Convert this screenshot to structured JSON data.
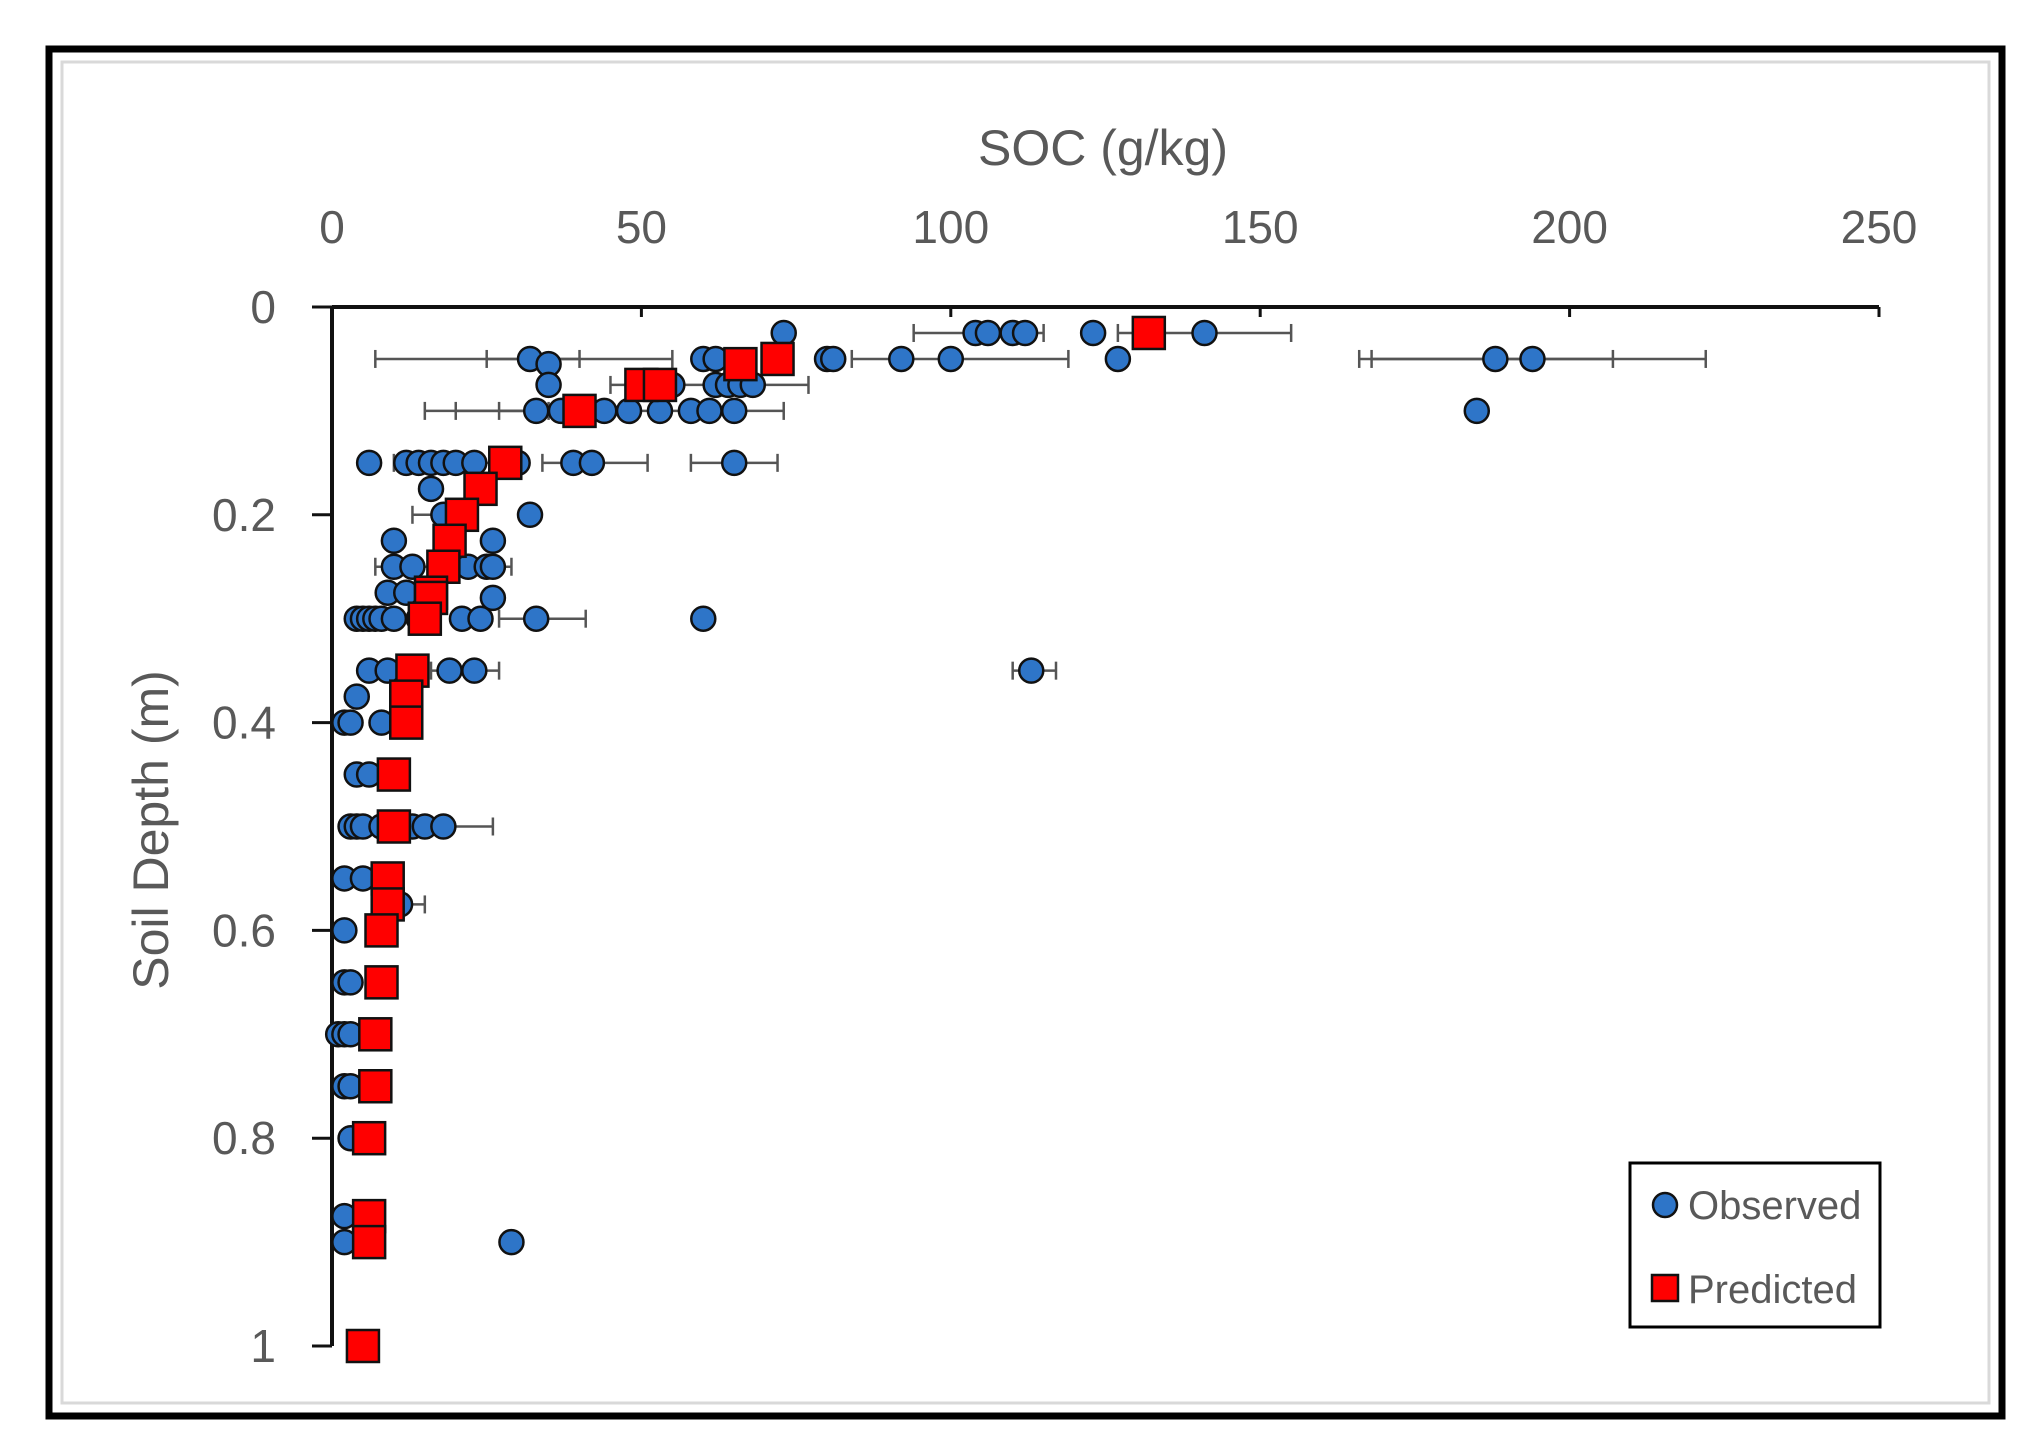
{
  "chart_data": {
    "type": "scatter",
    "title": "",
    "xlabel": "SOC (g/kg)",
    "ylabel": "Soil Depth (m)",
    "xlim": [
      0,
      250
    ],
    "ylim": [
      0,
      1
    ],
    "x_axis_position": "top",
    "y_axis_inverted": true,
    "grid": false,
    "legend_position": "bottom-right",
    "x_ticks": [
      "0",
      "50",
      "100",
      "150",
      "200",
      "250"
    ],
    "y_ticks": [
      "0",
      "0.2",
      "0.4",
      "0.6",
      "0.8",
      "1"
    ],
    "x_tick_values": [
      0,
      50,
      100,
      150,
      200,
      250
    ],
    "y_tick_values": [
      0,
      0.2,
      0.4,
      0.6,
      0.8,
      1
    ],
    "colors": {
      "observed_fill": "#2E75C8",
      "observed_stroke": "#111111",
      "predicted_fill": "#FF0000",
      "predicted_stroke": "#111111",
      "error_bar": "#555555",
      "axis": "#111111",
      "frame": "#000000"
    },
    "series": [
      {
        "name": "Observed",
        "marker": "circle",
        "points": [
          {
            "x": 73,
            "y": 0.025
          },
          {
            "x": 104,
            "y": 0.025
          },
          {
            "x": 106,
            "y": 0.025
          },
          {
            "x": 110,
            "y": 0.025
          },
          {
            "x": 112,
            "y": 0.025
          },
          {
            "x": 123,
            "y": 0.025
          },
          {
            "x": 141,
            "y": 0.025
          },
          {
            "x": 32,
            "y": 0.05
          },
          {
            "x": 35,
            "y": 0.055
          },
          {
            "x": 60,
            "y": 0.05
          },
          {
            "x": 62,
            "y": 0.05
          },
          {
            "x": 80,
            "y": 0.05
          },
          {
            "x": 81,
            "y": 0.05
          },
          {
            "x": 92,
            "y": 0.05
          },
          {
            "x": 100,
            "y": 0.05
          },
          {
            "x": 127,
            "y": 0.05
          },
          {
            "x": 188,
            "y": 0.05
          },
          {
            "x": 194,
            "y": 0.05
          },
          {
            "x": 35,
            "y": 0.075
          },
          {
            "x": 55,
            "y": 0.075
          },
          {
            "x": 62,
            "y": 0.075
          },
          {
            "x": 64,
            "y": 0.075
          },
          {
            "x": 66,
            "y": 0.075
          },
          {
            "x": 68,
            "y": 0.075
          },
          {
            "x": 33,
            "y": 0.1
          },
          {
            "x": 37,
            "y": 0.1
          },
          {
            "x": 44,
            "y": 0.1
          },
          {
            "x": 48,
            "y": 0.1
          },
          {
            "x": 53,
            "y": 0.1
          },
          {
            "x": 58,
            "y": 0.1
          },
          {
            "x": 61,
            "y": 0.1
          },
          {
            "x": 65,
            "y": 0.1
          },
          {
            "x": 185,
            "y": 0.1
          },
          {
            "x": 6,
            "y": 0.15
          },
          {
            "x": 12,
            "y": 0.15
          },
          {
            "x": 14,
            "y": 0.15
          },
          {
            "x": 16,
            "y": 0.15
          },
          {
            "x": 18,
            "y": 0.15
          },
          {
            "x": 20,
            "y": 0.15
          },
          {
            "x": 23,
            "y": 0.15
          },
          {
            "x": 30,
            "y": 0.15
          },
          {
            "x": 39,
            "y": 0.15
          },
          {
            "x": 42,
            "y": 0.15
          },
          {
            "x": 65,
            "y": 0.15
          },
          {
            "x": 16,
            "y": 0.175
          },
          {
            "x": 18,
            "y": 0.2
          },
          {
            "x": 32,
            "y": 0.2
          },
          {
            "x": 10,
            "y": 0.225
          },
          {
            "x": 26,
            "y": 0.225
          },
          {
            "x": 10,
            "y": 0.25
          },
          {
            "x": 13,
            "y": 0.25
          },
          {
            "x": 22,
            "y": 0.25
          },
          {
            "x": 25,
            "y": 0.25
          },
          {
            "x": 26,
            "y": 0.25
          },
          {
            "x": 9,
            "y": 0.275
          },
          {
            "x": 12,
            "y": 0.275
          },
          {
            "x": 26,
            "y": 0.28
          },
          {
            "x": 4,
            "y": 0.3
          },
          {
            "x": 5,
            "y": 0.3
          },
          {
            "x": 6,
            "y": 0.3
          },
          {
            "x": 7,
            "y": 0.3
          },
          {
            "x": 8,
            "y": 0.3
          },
          {
            "x": 10,
            "y": 0.3
          },
          {
            "x": 14,
            "y": 0.3
          },
          {
            "x": 21,
            "y": 0.3
          },
          {
            "x": 24,
            "y": 0.3
          },
          {
            "x": 33,
            "y": 0.3
          },
          {
            "x": 60,
            "y": 0.3
          },
          {
            "x": 6,
            "y": 0.35
          },
          {
            "x": 9,
            "y": 0.35
          },
          {
            "x": 19,
            "y": 0.35
          },
          {
            "x": 23,
            "y": 0.35
          },
          {
            "x": 113,
            "y": 0.35
          },
          {
            "x": 4,
            "y": 0.375
          },
          {
            "x": 2,
            "y": 0.4
          },
          {
            "x": 3,
            "y": 0.4
          },
          {
            "x": 8,
            "y": 0.4
          },
          {
            "x": 4,
            "y": 0.45
          },
          {
            "x": 6,
            "y": 0.45
          },
          {
            "x": 3,
            "y": 0.5
          },
          {
            "x": 4,
            "y": 0.5
          },
          {
            "x": 5,
            "y": 0.5
          },
          {
            "x": 8,
            "y": 0.5
          },
          {
            "x": 11,
            "y": 0.5
          },
          {
            "x": 13,
            "y": 0.5
          },
          {
            "x": 15,
            "y": 0.5
          },
          {
            "x": 18,
            "y": 0.5
          },
          {
            "x": 2,
            "y": 0.55
          },
          {
            "x": 5,
            "y": 0.55
          },
          {
            "x": 11,
            "y": 0.575
          },
          {
            "x": 2,
            "y": 0.6
          },
          {
            "x": 2,
            "y": 0.65
          },
          {
            "x": 3,
            "y": 0.65
          },
          {
            "x": 1,
            "y": 0.7
          },
          {
            "x": 2,
            "y": 0.7
          },
          {
            "x": 3,
            "y": 0.7
          },
          {
            "x": 2,
            "y": 0.75
          },
          {
            "x": 3,
            "y": 0.75
          },
          {
            "x": 3,
            "y": 0.8
          },
          {
            "x": 2,
            "y": 0.875
          },
          {
            "x": 2,
            "y": 0.9
          },
          {
            "x": 29,
            "y": 0.9
          }
        ]
      },
      {
        "name": "Predicted",
        "marker": "square",
        "points": [
          {
            "x": 132,
            "y": 0.025
          },
          {
            "x": 72,
            "y": 0.05
          },
          {
            "x": 66,
            "y": 0.055
          },
          {
            "x": 50,
            "y": 0.075
          },
          {
            "x": 53,
            "y": 0.075
          },
          {
            "x": 40,
            "y": 0.1
          },
          {
            "x": 28,
            "y": 0.15
          },
          {
            "x": 24,
            "y": 0.175
          },
          {
            "x": 21,
            "y": 0.2
          },
          {
            "x": 19,
            "y": 0.225
          },
          {
            "x": 18,
            "y": 0.25
          },
          {
            "x": 16,
            "y": 0.275
          },
          {
            "x": 16,
            "y": 0.28
          },
          {
            "x": 15,
            "y": 0.3
          },
          {
            "x": 13,
            "y": 0.35
          },
          {
            "x": 12,
            "y": 0.375
          },
          {
            "x": 12,
            "y": 0.4
          },
          {
            "x": 10,
            "y": 0.45
          },
          {
            "x": 10,
            "y": 0.5
          },
          {
            "x": 9,
            "y": 0.55
          },
          {
            "x": 9,
            "y": 0.575
          },
          {
            "x": 8,
            "y": 0.6
          },
          {
            "x": 8,
            "y": 0.65
          },
          {
            "x": 7,
            "y": 0.7
          },
          {
            "x": 7,
            "y": 0.75
          },
          {
            "x": 6,
            "y": 0.8
          },
          {
            "x": 6,
            "y": 0.875
          },
          {
            "x": 6,
            "y": 0.9
          },
          {
            "x": 5,
            "y": 1.0
          }
        ]
      }
    ],
    "error_bars": [
      {
        "y": 0.025,
        "xmin": 94,
        "xmax": 115
      },
      {
        "y": 0.025,
        "xmin": 127,
        "xmax": 155
      },
      {
        "y": 0.05,
        "xmin": 7,
        "xmax": 55
      },
      {
        "y": 0.05,
        "xmin": 25,
        "xmax": 40
      },
      {
        "y": 0.05,
        "xmin": 84,
        "xmax": 119
      },
      {
        "y": 0.05,
        "xmin": 166,
        "xmax": 222
      },
      {
        "y": 0.05,
        "xmin": 168,
        "xmax": 207
      },
      {
        "y": 0.075,
        "xmin": 45,
        "xmax": 77
      },
      {
        "y": 0.1,
        "xmin": 15,
        "xmax": 73
      },
      {
        "y": 0.1,
        "xmin": 20,
        "xmax": 32
      },
      {
        "y": 0.1,
        "xmin": 27,
        "xmax": 35
      },
      {
        "y": 0.15,
        "xmin": 10,
        "xmax": 30
      },
      {
        "y": 0.15,
        "xmin": 34,
        "xmax": 51
      },
      {
        "y": 0.15,
        "xmin": 58,
        "xmax": 72
      },
      {
        "y": 0.2,
        "xmin": 13,
        "xmax": 22
      },
      {
        "y": 0.25,
        "xmin": 7,
        "xmax": 29
      },
      {
        "y": 0.3,
        "xmin": 6,
        "xmax": 17
      },
      {
        "y": 0.3,
        "xmin": 27,
        "xmax": 41
      },
      {
        "y": 0.35,
        "xmin": 16,
        "xmax": 27
      },
      {
        "y": 0.35,
        "xmin": 110,
        "xmax": 117
      },
      {
        "y": 0.5,
        "xmin": 15,
        "xmax": 26
      },
      {
        "y": 0.575,
        "xmin": 7,
        "xmax": 15
      },
      {
        "y": 0.875,
        "xmin": 1,
        "xmax": 4
      }
    ]
  }
}
